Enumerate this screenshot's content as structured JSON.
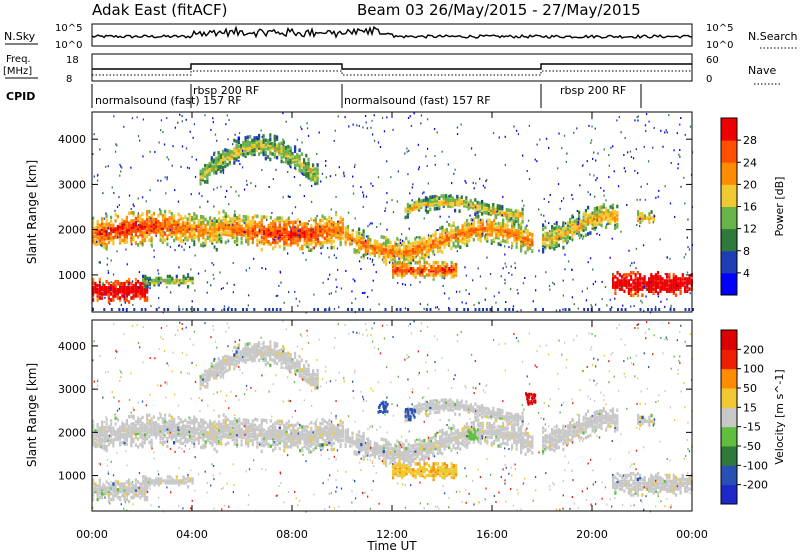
{
  "header": {
    "station": "Adak East (fitACF)",
    "beam_date": "Beam 03 26/May/2015 - 27/May/2015"
  },
  "noise_panel": {
    "left_label": "N.Sky",
    "left_ticks": [
      "10^5",
      "10^0"
    ],
    "right_label": "N.Search",
    "right_ticks": [
      "10^5",
      "10^0"
    ]
  },
  "freq_panel": {
    "left_label_1": "Freq.",
    "left_label_2": "[MHz]",
    "left_ticks": [
      "18",
      "8"
    ],
    "right_label": "Nave",
    "right_ticks": [
      "60",
      "0"
    ]
  },
  "cpid_panel": {
    "label": "CPID",
    "segments": [
      "normalsound (fast) 157 RF",
      "rbsp 200 RF",
      "normalsound (fast) 157 RF",
      "rbsp 200 RF"
    ]
  },
  "power_colorbar": {
    "title": "Power [dB]",
    "ticks": [
      "28",
      "24",
      "20",
      "16",
      "12",
      "8",
      "4"
    ],
    "colors": [
      "#0000ff",
      "#1e3cb4",
      "#2d7a3c",
      "#6ab24a",
      "#f0c832",
      "#ff8c00",
      "#ff5000",
      "#ee0000"
    ]
  },
  "velocity_colorbar": {
    "title": "Velocity [m s^-1]",
    "ticks": [
      "200",
      "100",
      "50",
      "15",
      "-15",
      "-50",
      "-100",
      "-200"
    ],
    "colors": [
      "#1e28c8",
      "#2850b4",
      "#2d7a3c",
      "#5fbf3c",
      "#c8c8c8",
      "#f0c832",
      "#ff8c00",
      "#ee1e00",
      "#dc0000"
    ]
  },
  "chart_data": [
    {
      "type": "heatmap",
      "title": "Power",
      "xlabel": "",
      "ylabel": "Slant Range [km]",
      "x_ticks": [
        "00:00",
        "04:00",
        "08:00",
        "12:00",
        "16:00",
        "20:00",
        "00:00"
      ],
      "y_ticks": [
        1000,
        2000,
        3000,
        4000
      ],
      "xlim": [
        0,
        24
      ],
      "ylim": [
        180,
        4600
      ],
      "colorbar": "Power [dB]"
    },
    {
      "type": "heatmap",
      "title": "Velocity",
      "xlabel": "Time UT",
      "ylabel": "Slant Range [km]",
      "x_ticks": [
        "00:00",
        "04:00",
        "08:00",
        "12:00",
        "16:00",
        "20:00",
        "00:00"
      ],
      "y_ticks": [
        1000,
        2000,
        3000,
        4000
      ],
      "xlim": [
        0,
        24
      ],
      "ylim": [
        180,
        4600
      ],
      "colorbar": "Velocity [m s^-1]"
    }
  ]
}
